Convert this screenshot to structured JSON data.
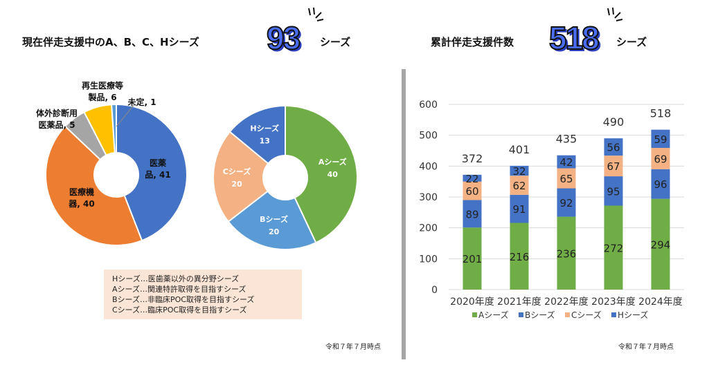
{
  "left": {
    "title": "現在伴走支援中のA、B、C、Hシーズ",
    "count": "93",
    "unit": "シーズ",
    "footnote": "令和７年７月時点",
    "legend_note": [
      "Hシーズ…医歯薬以外の異分野シーズ",
      "Aシーズ…関連特許取得を目指すシーズ",
      "Bシーズ…非臨床POC取得を目指すシーズ",
      "Cシーズ…臨床POC取得を目指すシーズ"
    ]
  },
  "right": {
    "title": "累計伴走支援件数",
    "count": "518",
    "unit": "シーズ",
    "footnote": "令和７年７月時点"
  },
  "chart_data": [
    {
      "type": "pie",
      "subtype": "doughnut",
      "labels": [
        "医薬品",
        "医療機器",
        "体外診断用医薬品",
        "再生医療等製品",
        "未定"
      ],
      "label_text": [
        "医薬\n品, 41",
        "医療機\n器, 40",
        "体外診断用\n医薬品, 5",
        "再生医療等\n製品, 6",
        "未定, 1"
      ],
      "values": [
        41,
        40,
        5,
        6,
        1
      ],
      "colors": [
        "#4472c4",
        "#ed7d31",
        "#a5a5a5",
        "#ffc000",
        "#5b9bd5"
      ]
    },
    {
      "type": "pie",
      "subtype": "doughnut",
      "labels": [
        "Aシーズ",
        "Bシーズ",
        "Cシーズ",
        "Hシーズ"
      ],
      "values": [
        40,
        20,
        20,
        13
      ],
      "colors": [
        "#70ad47",
        "#5b9bd5",
        "#f4b183",
        "#4472c4"
      ]
    },
    {
      "type": "bar",
      "stacked": true,
      "categories": [
        "2020年度",
        "2021年度",
        "2022年度",
        "2023年度",
        "2024年度"
      ],
      "series": [
        {
          "name": "Aシーズ",
          "values": [
            201,
            216,
            236,
            272,
            294
          ],
          "color": "#70ad47"
        },
        {
          "name": "Bシーズ",
          "values": [
            89,
            91,
            92,
            95,
            96
          ],
          "color": "#4472c4"
        },
        {
          "name": "Cシーズ",
          "values": [
            60,
            62,
            65,
            67,
            69
          ],
          "color": "#f4b183"
        },
        {
          "name": "Hシーズ",
          "values": [
            22,
            32,
            42,
            56,
            59
          ],
          "color": "#4472c4"
        }
      ],
      "totals": [
        372,
        401,
        435,
        490,
        518
      ],
      "ylim": [
        0,
        600
      ],
      "yticks": [
        0,
        100,
        200,
        300,
        400,
        500,
        600
      ],
      "grid": true,
      "legend": "bottom"
    }
  ]
}
